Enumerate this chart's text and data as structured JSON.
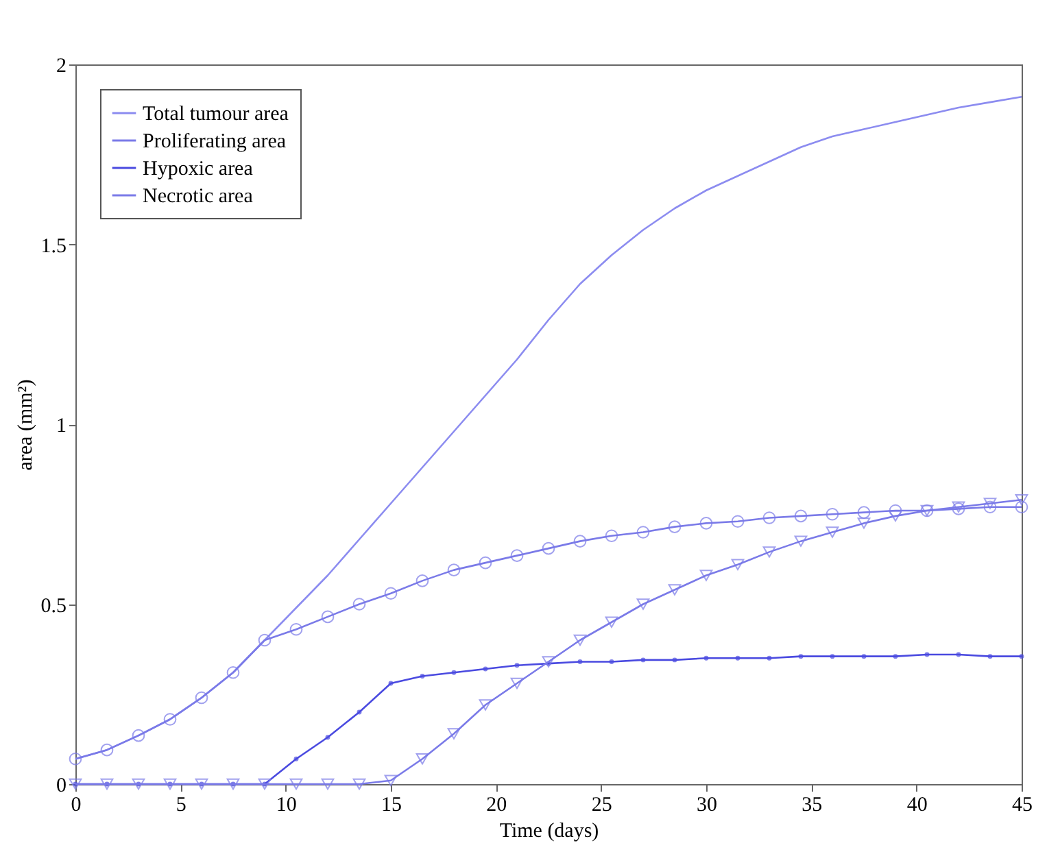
{
  "chart_data": {
    "type": "line",
    "xlabel": "Time (days)",
    "ylabel": "area (mm²)",
    "x": [
      0,
      1.5,
      3,
      4.5,
      6,
      7.5,
      9,
      10.5,
      12,
      13.5,
      15,
      16.5,
      18,
      19.5,
      21,
      22.5,
      24,
      25.5,
      27,
      28.5,
      30,
      31.5,
      33,
      34.5,
      36,
      37.5,
      39,
      40.5,
      42,
      43.5,
      45
    ],
    "xlim": [
      0,
      45
    ],
    "xticks": [
      0,
      5,
      10,
      15,
      20,
      25,
      30,
      35,
      40,
      45
    ],
    "ylim": [
      0,
      2
    ],
    "yticks": [
      0,
      0.5,
      1,
      1.5,
      2
    ],
    "grid": false,
    "legend": "top left",
    "line_style": "solid",
    "series": [
      {
        "name": "Total tumour area",
        "color": "#8c8cf0",
        "marker": "none",
        "values": [
          0.07,
          0.095,
          0.135,
          0.18,
          0.24,
          0.31,
          0.4,
          0.49,
          0.58,
          0.68,
          0.78,
          0.88,
          0.98,
          1.08,
          1.18,
          1.29,
          1.39,
          1.47,
          1.54,
          1.6,
          1.65,
          1.69,
          1.73,
          1.77,
          1.8,
          1.82,
          1.84,
          1.86,
          1.88,
          1.895,
          1.91
        ]
      },
      {
        "name": "Proliferating area",
        "color": "#7a7ae8",
        "marker": "circle",
        "values": [
          0.07,
          0.095,
          0.135,
          0.18,
          0.24,
          0.31,
          0.4,
          0.43,
          0.465,
          0.5,
          0.53,
          0.565,
          0.595,
          0.615,
          0.635,
          0.655,
          0.675,
          0.69,
          0.7,
          0.715,
          0.725,
          0.73,
          0.74,
          0.745,
          0.75,
          0.755,
          0.76,
          0.76,
          0.765,
          0.77,
          0.77
        ]
      },
      {
        "name": "Hypoxic area",
        "color": "#4a4ae0",
        "marker": "circle",
        "values": [
          0,
          0,
          0,
          0,
          0,
          0,
          0,
          0.07,
          0.13,
          0.2,
          0.28,
          0.3,
          0.31,
          0.32,
          0.33,
          0.335,
          0.34,
          0.34,
          0.345,
          0.345,
          0.35,
          0.35,
          0.35,
          0.355,
          0.355,
          0.355,
          0.355,
          0.36,
          0.36,
          0.355,
          0.355
        ]
      },
      {
        "name": "Necrotic area",
        "color": "#7a7ae8",
        "marker": "triangle",
        "values": [
          0,
          0,
          0,
          0,
          0,
          0,
          0,
          0,
          0,
          0,
          0.01,
          0.07,
          0.14,
          0.22,
          0.28,
          0.34,
          0.4,
          0.45,
          0.5,
          0.54,
          0.58,
          0.61,
          0.645,
          0.675,
          0.7,
          0.725,
          0.745,
          0.76,
          0.77,
          0.78,
          0.79
        ]
      }
    ]
  }
}
